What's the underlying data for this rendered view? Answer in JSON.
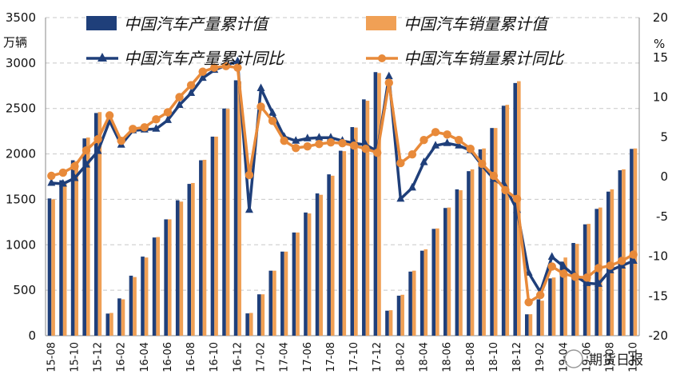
{
  "chart_data": {
    "type": "bar+line",
    "ylabel_left": "万辆",
    "ylabel_right": "%",
    "ylim_left": [
      0,
      3500
    ],
    "ylim_right": [
      -20,
      20
    ],
    "yticks_left": [
      "0",
      "500",
      "1000",
      "1500",
      "2000",
      "2500",
      "3000",
      "3500"
    ],
    "yticks_right": [
      "-20",
      "-15",
      "-10",
      "-5",
      "0",
      "5",
      "10",
      "15",
      "20"
    ],
    "grid": "horizontal-dashed",
    "categories": [
      "15-08",
      "15-09",
      "15-10",
      "15-11",
      "15-12",
      "16-01",
      "16-02",
      "16-03",
      "16-04",
      "16-05",
      "16-06",
      "16-07",
      "16-08",
      "16-09",
      "16-10",
      "16-11",
      "16-12",
      "17-01",
      "17-02",
      "17-03",
      "17-04",
      "17-05",
      "17-06",
      "17-07",
      "17-08",
      "17-09",
      "17-10",
      "17-11",
      "17-12",
      "18-01",
      "18-02",
      "18-03",
      "18-04",
      "18-05",
      "18-06",
      "18-07",
      "18-08",
      "18-09",
      "18-10",
      "18-11",
      "18-12",
      "19-01",
      "19-02",
      "19-03",
      "19-04",
      "19-05",
      "19-06",
      "19-07",
      "19-08",
      "19-09",
      "19-10"
    ],
    "xtick_labels": [
      "15-08",
      "15-10",
      "15-12",
      "16-02",
      "16-04",
      "16-06",
      "16-08",
      "16-10",
      "16-12",
      "17-02",
      "17-04",
      "17-06",
      "17-08",
      "17-10",
      "17-12",
      "18-02",
      "18-04",
      "18-06",
      "18-08",
      "18-10",
      "18-12",
      "19-02",
      "19-04",
      "19-06",
      "19-08",
      "19-10"
    ],
    "series": [
      {
        "name": "中国汽车产量累计值",
        "kind": "bar",
        "axis": "left",
        "color": "#1f3f7a",
        "values": [
          1510,
          1710,
          1930,
          2170,
          2450,
          243,
          410,
          660,
          870,
          1080,
          1280,
          1490,
          1670,
          1930,
          2190,
          2500,
          2810,
          245,
          455,
          715,
          925,
          1135,
          1355,
          1565,
          1775,
          2035,
          2295,
          2600,
          2900,
          275,
          440,
          705,
          935,
          1175,
          1405,
          1610,
          1810,
          2050,
          2285,
          2530,
          2780,
          235,
          400,
          630,
          815,
          1020,
          1225,
          1395,
          1585,
          1820,
          2055
        ]
      },
      {
        "name": "中国汽车销量累计值",
        "kind": "bar",
        "axis": "left",
        "color": "#f0a055",
        "values": [
          1500,
          1700,
          1920,
          2180,
          2460,
          250,
          400,
          645,
          860,
          1085,
          1280,
          1475,
          1680,
          1935,
          2190,
          2495,
          2800,
          250,
          455,
          715,
          925,
          1135,
          1345,
          1550,
          1760,
          2030,
          2290,
          2585,
          2890,
          280,
          450,
          715,
          950,
          1180,
          1410,
          1600,
          1830,
          2060,
          2285,
          2540,
          2800,
          236,
          385,
          640,
          860,
          1010,
          1230,
          1410,
          1610,
          1830,
          2060
        ]
      },
      {
        "name": "中国汽车产量累计同比",
        "kind": "line",
        "axis": "right",
        "color": "#1f3f7a",
        "marker": "triangle",
        "values": [
          -0.8,
          -0.9,
          -0.2,
          1.5,
          3.2,
          7.0,
          4.0,
          5.8,
          5.9,
          6.0,
          7.1,
          9.0,
          10.5,
          12.4,
          13.4,
          14.0,
          14.5,
          -4.2,
          11.1,
          8.0,
          5.0,
          4.5,
          4.8,
          4.9,
          4.9,
          4.5,
          4.2,
          4.0,
          3.2,
          12.6,
          -2.8,
          -1.4,
          1.8,
          3.9,
          4.2,
          3.9,
          3.3,
          1.4,
          -0.3,
          -1.3,
          -4.2,
          -12.1,
          -14.5,
          -10.1,
          -11.3,
          -12.5,
          -13.4,
          -13.5,
          -11.8,
          -11.2,
          -10.6
        ]
      },
      {
        "name": "中国汽车销量累计同比",
        "kind": "line",
        "axis": "right",
        "color": "#e88a3a",
        "marker": "circle",
        "values": [
          0.1,
          0.5,
          1.3,
          3.3,
          4.7,
          7.7,
          4.5,
          6.0,
          6.2,
          7.2,
          8.1,
          10.0,
          11.5,
          13.2,
          13.7,
          13.9,
          13.7,
          0.2,
          8.8,
          7.0,
          4.5,
          3.6,
          3.8,
          4.1,
          4.3,
          4.2,
          3.9,
          3.5,
          3.0,
          11.8,
          1.7,
          2.8,
          4.6,
          5.6,
          5.3,
          4.6,
          3.5,
          1.6,
          0.1,
          -1.7,
          -2.8,
          -15.8,
          -14.9,
          -11.3,
          -12.2,
          -12.6,
          -12.7,
          -11.5,
          -11.2,
          -10.6,
          -9.8
        ]
      }
    ]
  },
  "watermark": "期货日报"
}
